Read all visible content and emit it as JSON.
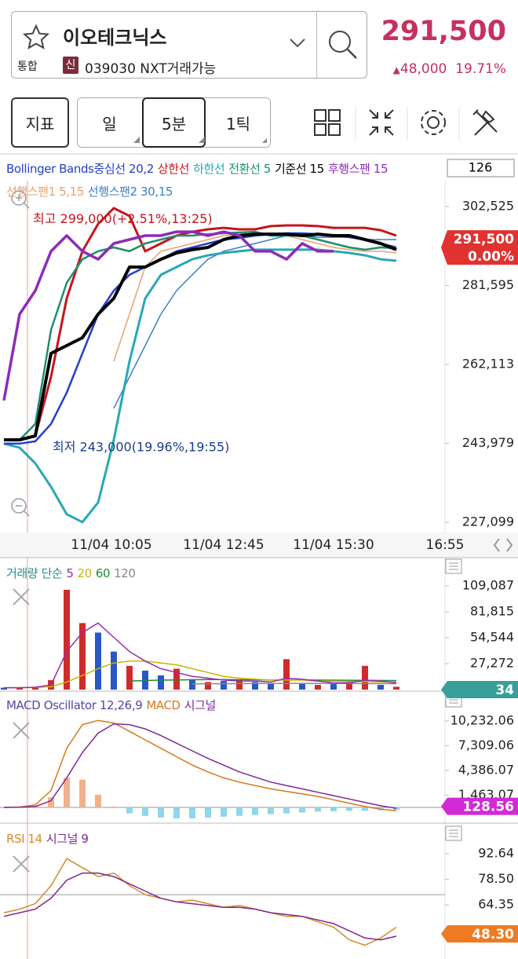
{
  "header": {
    "stock_name": "이오테크닉스",
    "market": "통합",
    "badge": "신",
    "code_info": "039030 NXT거래가능",
    "price": "291,500",
    "change": "48,000",
    "change_rate": "19.71%"
  },
  "toolbar": {
    "indicator_btn": "지표",
    "periods": [
      "일",
      "5분",
      "1틱"
    ]
  },
  "indicator_count": 126,
  "chart_data": [
    {
      "type": "line",
      "log": true,
      "ylim": [
        225000,
        309300
      ],
      "yticks": [
        {
          "value": 302525,
          "label": "302,525"
        },
        {
          "value": 281595,
          "label": "281,595"
        },
        {
          "value": 262113,
          "label": "262,113"
        },
        {
          "value": 243979,
          "label": "243,979"
        },
        {
          "value": 227099,
          "label": "227,099"
        }
      ],
      "x_labels": [
        "11/04 10:05",
        "11/04 12:45",
        "11/04 15:30",
        "16:55"
      ],
      "series": [
        {
          "name": "Bollinger Bands중심선 20,2",
          "color": "#2440c8",
          "values": [
            243920,
            243920,
            244440,
            248310,
            255490,
            264770,
            274360,
            280290,
            284350,
            286370,
            288400,
            290490,
            291520,
            292550,
            293600,
            294030,
            294660,
            295050,
            295290,
            295290,
            295050,
            294660,
            294240,
            293600,
            292550,
            291520
          ]
        },
        {
          "name": "상한선",
          "color": "#c4161c",
          "values": [
            244770,
            244770,
            245650,
            259170,
            278320,
            290490,
            297810,
            302100,
            299950,
            290490,
            292550,
            294660,
            295690,
            296330,
            296750,
            296330,
            296330,
            297200,
            297390,
            297390,
            297200,
            296750,
            296750,
            296750,
            296110,
            294660
          ]
        },
        {
          "name": "하한선",
          "color": "#2aa7b5",
          "values": [
            243920,
            243040,
            239600,
            234540,
            228770,
            227130,
            231220,
            244770,
            262870,
            278320,
            284350,
            286370,
            288400,
            289430,
            290060,
            290490,
            290910,
            290910,
            290910,
            290910,
            290910,
            290490,
            290060,
            289430,
            288400,
            288000
          ]
        },
        {
          "name": "전환선 5",
          "color": "#1e8f6e",
          "values": [
            244770,
            244770,
            248310,
            270490,
            282290,
            288400,
            290490,
            291520,
            290490,
            292550,
            293600,
            294660,
            294660,
            295050,
            295290,
            295500,
            295690,
            294660,
            294660,
            294660,
            293600,
            292550,
            291520,
            290910,
            291520,
            291300
          ]
        },
        {
          "name": "기준선 15",
          "color": "#000000",
          "values": [
            244770,
            244770,
            245650,
            264770,
            266650,
            268560,
            274360,
            278320,
            286370,
            286370,
            288400,
            290060,
            290910,
            291520,
            293600,
            294660,
            295050,
            295050,
            295050,
            294660,
            295050,
            294660,
            294660,
            293600,
            292550,
            290910
          ]
        },
        {
          "name": "후행스팬 15",
          "color": "#8e2bb8",
          "values": [
            253670,
            274360,
            280290,
            290490,
            294660,
            290490,
            288400,
            292550,
            293600,
            294660,
            294660,
            295690,
            295690,
            294660,
            295690,
            294660,
            290490,
            290490,
            288400,
            292550,
            290490,
            290490,
            null,
            null,
            null,
            null
          ]
        },
        {
          "name": "선행스팬1 5,15",
          "color": "#e8a070",
          "values": [
            null,
            null,
            null,
            null,
            null,
            null,
            null,
            262870,
            274360,
            286370,
            290490,
            291520,
            292550,
            293600,
            294660,
            295050,
            295290,
            295290,
            294660,
            293600,
            292550,
            291520,
            290910,
            290490,
            290490,
            290060
          ]
        },
        {
          "name": "선행스팬2 30,15",
          "color": "#3d7fc4",
          "values": [
            null,
            null,
            null,
            null,
            null,
            null,
            null,
            251880,
            259170,
            266650,
            274360,
            280290,
            284350,
            288400,
            290490,
            291520,
            292550,
            293600,
            294660,
            294660,
            294240,
            294240,
            294240,
            293600,
            293600,
            293600
          ]
        }
      ],
      "annotations": [
        {
          "text": "최고 299,000(+2.51%,13:25)",
          "value": 299000,
          "color": "#c4161c"
        },
        {
          "text": "최저 243,000(19.96%,19:55)",
          "value": 243000,
          "color": "#1a3f8f"
        }
      ],
      "last_tag": {
        "value": 291500,
        "label": "291,500"
      },
      "change_label": "0.00%",
      "tag_color": "#e0322f"
    },
    {
      "type": "bar",
      "ylim": [
        0,
        118200
      ],
      "yticks": [
        {
          "value": 109087,
          "label": "109,087"
        },
        {
          "value": 81815,
          "label": "81,815"
        },
        {
          "value": 54544,
          "label": "54,544"
        },
        {
          "value": 27272,
          "label": "27,272"
        }
      ],
      "series": [
        {
          "name": "거래량 단순",
          "type": "bar",
          "color": "#2e8b8b",
          "colors": [
            "#2a56c8",
            "#d22a2a",
            "#d22a2a",
            "#d22a2a",
            "#d22a2a",
            "#d22a2a",
            "#2a56c8",
            "#2a56c8",
            "#d22a2a",
            "#2a56c8",
            "#2a56c8",
            "#d22a2a",
            "#2a56c8",
            "#d22a2a",
            "#2a56c8",
            "#d22a2a",
            "#2a56c8",
            "#2a56c8",
            "#d22a2a",
            "#2a56c8",
            "#d22a2a",
            "#2a56c8",
            "#d22a2a",
            "#d22a2a",
            "#2a56c8",
            "#d22a2a"
          ],
          "values": [
            2000,
            2000,
            3000,
            10000,
            105000,
            70000,
            60000,
            40000,
            25000,
            20000,
            15000,
            22000,
            10000,
            8000,
            9000,
            10000,
            8000,
            7000,
            32000,
            6000,
            5000,
            6000,
            8000,
            25000,
            5000,
            3000
          ]
        },
        {
          "name": "5",
          "color": "#9a2bb0",
          "values": [
            2000,
            2000,
            2500,
            5000,
            40000,
            60000,
            70000,
            55000,
            40000,
            30000,
            22000,
            18000,
            14000,
            12000,
            10000,
            9000,
            9000,
            8000,
            12000,
            11000,
            9000,
            7000,
            7000,
            10000,
            9000,
            7000
          ]
        },
        {
          "name": "20",
          "color": "#c8b400",
          "values": [
            2000,
            2000,
            2200,
            3000,
            8000,
            15000,
            22000,
            28000,
            30000,
            30000,
            28000,
            26000,
            22000,
            18000,
            14000,
            12000,
            11000,
            10000,
            10000,
            10000,
            9000,
            9000,
            8500,
            8500,
            8000,
            8000
          ]
        },
        {
          "name": "60",
          "color": "#1e8a3a",
          "values": [
            null,
            null,
            null,
            null,
            null,
            null,
            null,
            null,
            9000,
            9500,
            10000,
            10200,
            10400,
            10500,
            10500,
            10400,
            10300,
            10200,
            10200,
            10100,
            10000,
            9900,
            9800,
            9700,
            9600,
            9500
          ]
        },
        {
          "name": "120",
          "color": "#888888",
          "values": [
            null,
            null,
            null,
            null,
            null,
            null,
            null,
            null,
            null,
            null,
            null,
            null,
            6000,
            6100,
            6200,
            6300,
            6400,
            6500,
            6500,
            6500,
            6500,
            6400,
            6400,
            6300,
            6300,
            6200
          ]
        }
      ],
      "last_tag": 34,
      "tag_color": "#3a9e9a"
    },
    {
      "type": "bar",
      "ylim": [
        -1580,
        11440
      ],
      "yticks": [
        {
          "value": 10232.06,
          "label": "10,232.06"
        },
        {
          "value": 7309.06,
          "label": "7,309.06"
        },
        {
          "value": 4386.07,
          "label": "4,386.07"
        },
        {
          "value": 1463.07,
          "label": "1,463.07"
        }
      ],
      "reference_line": 0,
      "series": [
        {
          "name": "MACD Oscillator 12,26,9",
          "type": "bar",
          "legend_color": "#5b43a8",
          "color": "#f3b08e",
          "negative_color": "#8fd6ea",
          "values": [
            0,
            30,
            200,
            1200,
            3500,
            3300,
            1500,
            100,
            -700,
            -1000,
            -1200,
            -1300,
            -1300,
            -1200,
            -1100,
            -1000,
            -900,
            -800,
            -700,
            -600,
            -500,
            -450,
            -400,
            -400,
            -350,
            -300
          ]
        },
        {
          "name": "MACD",
          "color": "#d47a1a",
          "values": [
            0,
            50,
            300,
            2000,
            7000,
            9800,
            10300,
            10000,
            9000,
            8000,
            7000,
            6000,
            5000,
            4200,
            3500,
            3000,
            2600,
            2200,
            1900,
            1600,
            1300,
            900,
            500,
            100,
            -200,
            -400
          ]
        },
        {
          "name": "시그널",
          "color": "#7a2a9a",
          "values": [
            0,
            20,
            100,
            800,
            3500,
            6500,
            8800,
            9900,
            9800,
            9300,
            8500,
            7600,
            6700,
            5800,
            5000,
            4200,
            3600,
            3000,
            2600,
            2200,
            1800,
            1400,
            1000,
            600,
            200,
            -100
          ]
        }
      ],
      "last_tag": 128.56,
      "tag_color": "#d12ad6"
    },
    {
      "type": "line",
      "ylim": [
        37,
        97.9
      ],
      "yticks": [
        92.64,
        {
          "value": 78.5,
          "label": "78.50"
        },
        64.35
      ],
      "reference_line": 70,
      "series": [
        {
          "name": "RSI 14",
          "color": "#d98a2a",
          "values": [
            60,
            62,
            65,
            75,
            90,
            85,
            80,
            82,
            75,
            70,
            68,
            66,
            67,
            65,
            63,
            64,
            62,
            60,
            58,
            58,
            55,
            52,
            45,
            42,
            46,
            52
          ]
        },
        {
          "name": "시그널 9",
          "color": "#7a2a8a",
          "values": [
            58,
            60,
            62,
            68,
            78,
            82,
            82,
            80,
            76,
            72,
            68,
            66,
            65,
            64,
            63,
            63,
            62,
            60,
            59,
            58,
            56,
            54,
            50,
            46,
            45,
            47
          ]
        }
      ],
      "last_tag": {
        "value": 48.3,
        "label": "48.30"
      },
      "tag_color": "#f07a22"
    }
  ]
}
